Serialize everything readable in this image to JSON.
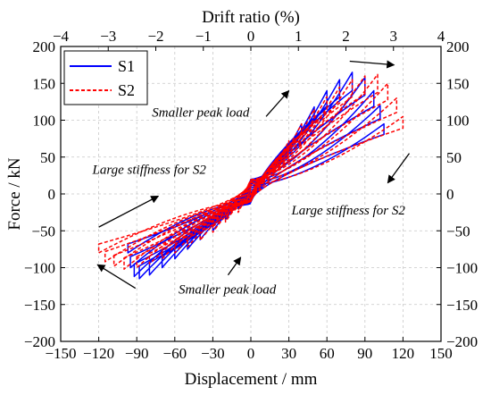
{
  "chart_data": {
    "type": "line",
    "xlabel": "Displacement / mm",
    "ylabel": "Force / kN",
    "x2label": "Drift ratio (%)",
    "xlim": [
      -150,
      150
    ],
    "ylim": [
      -200,
      200
    ],
    "x2lim": [
      -4,
      4
    ],
    "xticks": [
      -150,
      -120,
      -90,
      -60,
      -30,
      0,
      30,
      60,
      90,
      120,
      150
    ],
    "yticks": [
      -200,
      -150,
      -100,
      -50,
      0,
      50,
      100,
      150,
      200
    ],
    "x2ticks": [
      -4,
      -3,
      -2,
      -1,
      0,
      1,
      2,
      3,
      4
    ],
    "grid": true,
    "legend_position": "top-left",
    "series": [
      {
        "name": "S1",
        "color": "#0000ff",
        "style": "solid",
        "cycles": [
          {
            "dmax": 10,
            "fpos": 22,
            "dmin": -10,
            "fneg": -20
          },
          {
            "dmax": 20,
            "fpos": 45,
            "dmin": -20,
            "fneg": -35
          },
          {
            "dmax": 30,
            "fpos": 70,
            "dmin": -30,
            "fneg": -50
          },
          {
            "dmax": 40,
            "fpos": 95,
            "dmin": -40,
            "fneg": -62
          },
          {
            "dmax": 50,
            "fpos": 118,
            "dmin": -50,
            "fneg": -75
          },
          {
            "dmax": 60,
            "fpos": 140,
            "dmin": -60,
            "fneg": -88
          },
          {
            "dmax": 70,
            "fpos": 155,
            "dmin": -70,
            "fneg": -100
          },
          {
            "dmax": 80,
            "fpos": 165,
            "dmin": -80,
            "fneg": -110
          },
          {
            "dmax": 90,
            "fpos": 158,
            "dmin": -88,
            "fneg": -115
          },
          {
            "dmax": 97,
            "fpos": 140,
            "dmin": -92,
            "fneg": -112
          },
          {
            "dmax": 102,
            "fpos": 120,
            "dmin": -95,
            "fneg": -100
          },
          {
            "dmax": 105,
            "fpos": 95,
            "dmin": -97,
            "fneg": -80
          }
        ]
      },
      {
        "name": "S2",
        "color": "#ff0000",
        "style": "dashed",
        "cycles": [
          {
            "dmax": 10,
            "fpos": 25,
            "dmin": -10,
            "fneg": -25
          },
          {
            "dmax": 20,
            "fpos": 48,
            "dmin": -20,
            "fneg": -38
          },
          {
            "dmax": 30,
            "fpos": 72,
            "dmin": -30,
            "fneg": -52
          },
          {
            "dmax": 40,
            "fpos": 95,
            "dmin": -40,
            "fneg": -63
          },
          {
            "dmax": 50,
            "fpos": 115,
            "dmin": -50,
            "fneg": -72
          },
          {
            "dmax": 60,
            "fpos": 132,
            "dmin": -60,
            "fneg": -80
          },
          {
            "dmax": 70,
            "fpos": 145,
            "dmin": -70,
            "fneg": -88
          },
          {
            "dmax": 80,
            "fpos": 155,
            "dmin": -80,
            "fneg": -95
          },
          {
            "dmax": 90,
            "fpos": 160,
            "dmin": -90,
            "fneg": -100
          },
          {
            "dmax": 100,
            "fpos": 162,
            "dmin": -100,
            "fneg": -102
          },
          {
            "dmax": 108,
            "fpos": 150,
            "dmin": -108,
            "fneg": -98
          },
          {
            "dmax": 115,
            "fpos": 130,
            "dmin": -115,
            "fneg": -92
          },
          {
            "dmax": 120,
            "fpos": 105,
            "dmin": -120,
            "fneg": -80
          }
        ]
      }
    ],
    "annotations": [
      {
        "text": "Smaller peak load",
        "x": -78,
        "y": 105
      },
      {
        "text": "Large stiffness for S2",
        "x": -125,
        "y": 27
      },
      {
        "text": "Large stiffness for S2",
        "x": 32,
        "y": -28
      },
      {
        "text": "Smaller peak load",
        "x": -57,
        "y": -135
      }
    ],
    "arrows": [
      {
        "from": [
          12,
          105
        ],
        "to": [
          30,
          140
        ]
      },
      {
        "from": [
          78,
          180
        ],
        "to": [
          113,
          175
        ]
      },
      {
        "from": [
          125,
          55
        ],
        "to": [
          108,
          15
        ]
      },
      {
        "from": [
          -120,
          -45
        ],
        "to": [
          -73,
          -3
        ]
      },
      {
        "from": [
          -91,
          -128
        ],
        "to": [
          -121,
          -96
        ]
      },
      {
        "from": [
          -18,
          -110
        ],
        "to": [
          -8,
          -86
        ]
      }
    ]
  }
}
